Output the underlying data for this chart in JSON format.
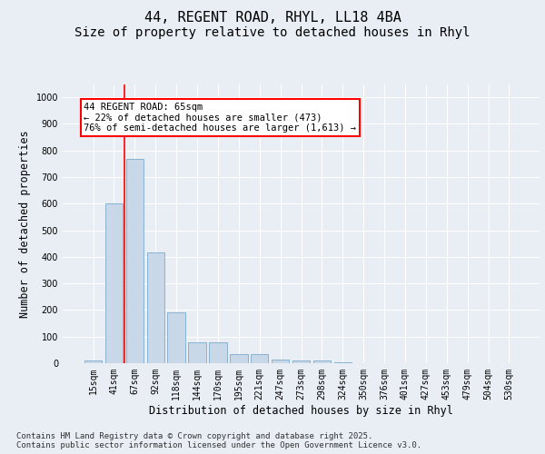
{
  "title_line1": "44, REGENT ROAD, RHYL, LL18 4BA",
  "title_line2": "Size of property relative to detached houses in Rhyl",
  "xlabel": "Distribution of detached houses by size in Rhyl",
  "ylabel": "Number of detached properties",
  "categories": [
    "15sqm",
    "41sqm",
    "67sqm",
    "92sqm",
    "118sqm",
    "144sqm",
    "170sqm",
    "195sqm",
    "221sqm",
    "247sqm",
    "273sqm",
    "298sqm",
    "324sqm",
    "350sqm",
    "376sqm",
    "401sqm",
    "427sqm",
    "453sqm",
    "479sqm",
    "504sqm",
    "530sqm"
  ],
  "values": [
    10,
    600,
    770,
    415,
    190,
    80,
    80,
    35,
    35,
    15,
    10,
    10,
    5,
    0,
    0,
    0,
    0,
    0,
    0,
    0,
    0
  ],
  "bar_color": "#c8d8e8",
  "bar_edge_color": "#7aaac8",
  "vline_x": 1.5,
  "vline_color": "red",
  "annotation_text": "44 REGENT ROAD: 65sqm\n← 22% of detached houses are smaller (473)\n76% of semi-detached houses are larger (1,613) →",
  "annotation_box_color": "white",
  "annotation_box_edge_color": "red",
  "ylim": [
    0,
    1050
  ],
  "yticks": [
    0,
    100,
    200,
    300,
    400,
    500,
    600,
    700,
    800,
    900,
    1000
  ],
  "background_color": "#e8eef4",
  "grid_color": "white",
  "footer_text": "Contains HM Land Registry data © Crown copyright and database right 2025.\nContains public sector information licensed under the Open Government Licence v3.0.",
  "title_fontsize": 11,
  "subtitle_fontsize": 10,
  "axis_label_fontsize": 8.5,
  "tick_fontsize": 7,
  "annotation_fontsize": 7.5,
  "footer_fontsize": 6.5
}
